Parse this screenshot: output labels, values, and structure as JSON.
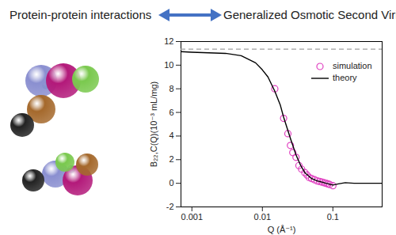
{
  "header": {
    "left": "Protein-protein interactions",
    "right": "Generalized Osmotic Second Virial Coefficient"
  },
  "chart_data": {
    "type": "line",
    "x_label": "Q (Å⁻¹)",
    "y_label": "B₂₂,C(Q)(10⁻³ mL/mg)",
    "log": "x",
    "xlim": [
      0.0007,
      0.5
    ],
    "xticks": [
      0.001,
      0.01,
      0.1
    ],
    "ylim": [
      -2,
      12
    ],
    "yticks": [
      -2,
      0,
      2,
      4,
      6,
      8,
      10,
      12
    ],
    "grid": false,
    "legend": "upper right",
    "reference_lines": [
      {
        "y": 11.35,
        "color": "#a0a0a0",
        "line_style": "dashed"
      }
    ],
    "series": [
      {
        "name": "simulation",
        "type": "scatter",
        "marker": "circle",
        "color": "#e040c0",
        "x": [
          0.015,
          0.02,
          0.023,
          0.025,
          0.027,
          0.03,
          0.033,
          0.036,
          0.04,
          0.043,
          0.046,
          0.05,
          0.055,
          0.06,
          0.065,
          0.07,
          0.075,
          0.08,
          0.085,
          0.09,
          0.1
        ],
        "values": [
          8.0,
          5.5,
          4.2,
          3.2,
          2.6,
          2.2,
          1.5,
          1.2,
          0.9,
          0.7,
          0.5,
          0.4,
          0.3,
          0.2,
          0.15,
          0.1,
          0.05,
          0.0,
          -0.05,
          -0.1,
          -0.2
        ]
      },
      {
        "name": "theory",
        "type": "line",
        "line_style": "solid",
        "color": "#000000",
        "x": [
          0.0007,
          0.001,
          0.003,
          0.005,
          0.008,
          0.01,
          0.012,
          0.015,
          0.018,
          0.02,
          0.025,
          0.03,
          0.035,
          0.04,
          0.05,
          0.06,
          0.07,
          0.08,
          0.1,
          0.12,
          0.15,
          0.2,
          0.3,
          0.5
        ],
        "values": [
          11.15,
          11.1,
          11.0,
          10.8,
          10.2,
          9.6,
          9.0,
          7.8,
          6.6,
          5.6,
          3.8,
          2.4,
          1.5,
          0.9,
          0.4,
          0.2,
          0.1,
          0.0,
          -0.15,
          -0.05,
          0.05,
          0.0,
          0.0,
          0.0
        ]
      }
    ]
  }
}
